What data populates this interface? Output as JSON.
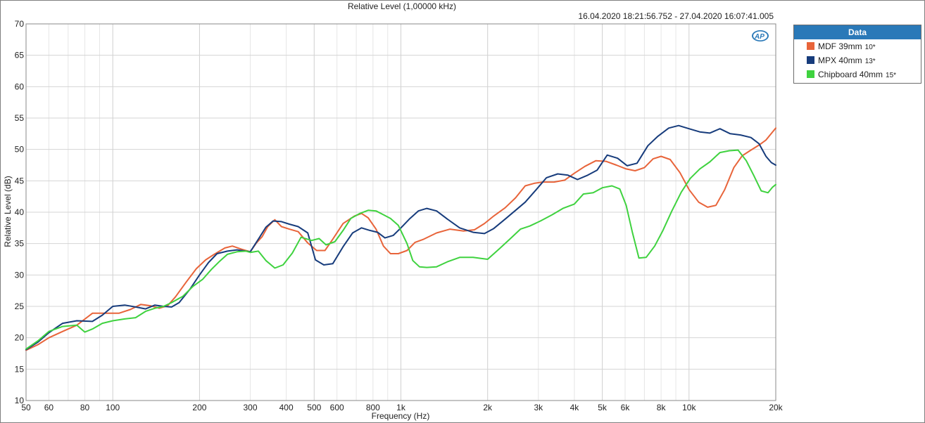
{
  "chart_data": {
    "type": "line",
    "title": "Relative Level (1,00000 kHz)",
    "date_range": "16.04.2020 18:21:56.752 - 27.04.2020 16:07:41.005",
    "xlabel": "Frequency (Hz)",
    "ylabel": "Relative Level (dB)",
    "xscale": "log",
    "xlim": [
      50,
      20000
    ],
    "ylim": [
      10,
      70
    ],
    "yticks": [
      10,
      15,
      20,
      25,
      30,
      35,
      40,
      45,
      50,
      55,
      60,
      65,
      70
    ],
    "xticks": [
      {
        "value": 50,
        "label": "50"
      },
      {
        "value": 60,
        "label": "60"
      },
      {
        "value": 80,
        "label": "80"
      },
      {
        "value": 100,
        "label": "100"
      },
      {
        "value": 200,
        "label": "200"
      },
      {
        "value": 300,
        "label": "300"
      },
      {
        "value": 400,
        "label": "400"
      },
      {
        "value": 500,
        "label": "500"
      },
      {
        "value": 600,
        "label": "600"
      },
      {
        "value": 800,
        "label": "800"
      },
      {
        "value": 1000,
        "label": "1k"
      },
      {
        "value": 2000,
        "label": "2k"
      },
      {
        "value": 3000,
        "label": "3k"
      },
      {
        "value": 4000,
        "label": "4k"
      },
      {
        "value": 5000,
        "label": "5k"
      },
      {
        "value": 6000,
        "label": "6k"
      },
      {
        "value": 8000,
        "label": "8k"
      },
      {
        "value": 10000,
        "label": "10k"
      },
      {
        "value": 20000,
        "label": "20k"
      }
    ],
    "grid": true,
    "legend_position": "right",
    "legend_title": "Data",
    "series": [
      {
        "name": "MDF 39mm",
        "suffix": "10*",
        "color": "#e8643a",
        "points": [
          [
            50,
            18
          ],
          [
            55,
            18.9
          ],
          [
            60,
            20
          ],
          [
            67,
            21
          ],
          [
            75,
            22
          ],
          [
            85,
            23.9
          ],
          [
            95,
            23.9
          ],
          [
            105,
            23.9
          ],
          [
            115,
            24.5
          ],
          [
            125,
            25.3
          ],
          [
            135,
            25.1
          ],
          [
            145,
            24.7
          ],
          [
            155,
            25.1
          ],
          [
            165,
            26.5
          ],
          [
            180,
            28.9
          ],
          [
            195,
            31
          ],
          [
            210,
            32.4
          ],
          [
            225,
            33.3
          ],
          [
            245,
            34.3
          ],
          [
            260,
            34.6
          ],
          [
            280,
            34.1
          ],
          [
            300,
            33.7
          ],
          [
            315,
            35.1
          ],
          [
            330,
            36.1
          ],
          [
            345,
            37.7
          ],
          [
            365,
            38.8
          ],
          [
            385,
            37.7
          ],
          [
            410,
            37.3
          ],
          [
            440,
            36.9
          ],
          [
            475,
            35.1
          ],
          [
            510,
            33.9
          ],
          [
            545,
            33.9
          ],
          [
            580,
            35.7
          ],
          [
            630,
            38.2
          ],
          [
            690,
            39.4
          ],
          [
            730,
            39.8
          ],
          [
            770,
            39.1
          ],
          [
            820,
            37.3
          ],
          [
            870,
            34.6
          ],
          [
            920,
            33.4
          ],
          [
            980,
            33.4
          ],
          [
            1050,
            33.9
          ],
          [
            1120,
            35.2
          ],
          [
            1200,
            35.7
          ],
          [
            1330,
            36.7
          ],
          [
            1480,
            37.3
          ],
          [
            1650,
            37
          ],
          [
            1800,
            37.2
          ],
          [
            1950,
            38.2
          ],
          [
            2100,
            39.4
          ],
          [
            2300,
            40.7
          ],
          [
            2500,
            42.3
          ],
          [
            2700,
            44.2
          ],
          [
            2900,
            44.6
          ],
          [
            3100,
            44.8
          ],
          [
            3400,
            44.8
          ],
          [
            3700,
            45.1
          ],
          [
            4000,
            46.2
          ],
          [
            4350,
            47.3
          ],
          [
            4750,
            48.2
          ],
          [
            5150,
            48.1
          ],
          [
            5600,
            47.5
          ],
          [
            6050,
            46.9
          ],
          [
            6500,
            46.6
          ],
          [
            7000,
            47.1
          ],
          [
            7500,
            48.5
          ],
          [
            8000,
            48.9
          ],
          [
            8600,
            48.4
          ],
          [
            9300,
            46.3
          ],
          [
            10000,
            43.6
          ],
          [
            10800,
            41.6
          ],
          [
            11600,
            40.8
          ],
          [
            12400,
            41.1
          ],
          [
            13300,
            43.6
          ],
          [
            14300,
            47.1
          ],
          [
            15300,
            49
          ],
          [
            16400,
            49.9
          ],
          [
            17500,
            50.7
          ],
          [
            18500,
            51.5
          ],
          [
            19500,
            52.8
          ],
          [
            20000,
            53.4
          ]
        ]
      },
      {
        "name": "MPX 40mm",
        "suffix": "13*",
        "color": "#173c7c",
        "points": [
          [
            50,
            18.1
          ],
          [
            55,
            19.3
          ],
          [
            60,
            20.8
          ],
          [
            67,
            22.3
          ],
          [
            75,
            22.7
          ],
          [
            85,
            22.6
          ],
          [
            92,
            23.6
          ],
          [
            100,
            25
          ],
          [
            110,
            25.2
          ],
          [
            120,
            24.9
          ],
          [
            130,
            24.6
          ],
          [
            140,
            25.2
          ],
          [
            150,
            25
          ],
          [
            160,
            24.9
          ],
          [
            170,
            25.6
          ],
          [
            185,
            27.7
          ],
          [
            200,
            30
          ],
          [
            215,
            32
          ],
          [
            230,
            33.4
          ],
          [
            250,
            33.8
          ],
          [
            270,
            34
          ],
          [
            290,
            33.8
          ],
          [
            300,
            33.7
          ],
          [
            320,
            35.7
          ],
          [
            340,
            37.6
          ],
          [
            360,
            38.6
          ],
          [
            385,
            38.5
          ],
          [
            410,
            38.1
          ],
          [
            440,
            37.7
          ],
          [
            475,
            36.7
          ],
          [
            505,
            32.4
          ],
          [
            540,
            31.6
          ],
          [
            580,
            31.8
          ],
          [
            630,
            34.5
          ],
          [
            680,
            36.7
          ],
          [
            730,
            37.5
          ],
          [
            780,
            37.1
          ],
          [
            830,
            36.8
          ],
          [
            880,
            35.9
          ],
          [
            940,
            36.3
          ],
          [
            1000,
            37.5
          ],
          [
            1070,
            38.9
          ],
          [
            1150,
            40.2
          ],
          [
            1230,
            40.6
          ],
          [
            1330,
            40.2
          ],
          [
            1450,
            38.9
          ],
          [
            1600,
            37.5
          ],
          [
            1780,
            36.8
          ],
          [
            1950,
            36.6
          ],
          [
            2100,
            37.4
          ],
          [
            2300,
            38.9
          ],
          [
            2500,
            40.3
          ],
          [
            2700,
            41.6
          ],
          [
            2950,
            43.6
          ],
          [
            3200,
            45.5
          ],
          [
            3500,
            46.1
          ],
          [
            3800,
            45.9
          ],
          [
            4100,
            45.2
          ],
          [
            4450,
            45.9
          ],
          [
            4800,
            46.7
          ],
          [
            5200,
            49.1
          ],
          [
            5650,
            48.6
          ],
          [
            6100,
            47.4
          ],
          [
            6600,
            47.8
          ],
          [
            7200,
            50.6
          ],
          [
            7800,
            52.1
          ],
          [
            8500,
            53.4
          ],
          [
            9200,
            53.8
          ],
          [
            10000,
            53.3
          ],
          [
            10900,
            52.8
          ],
          [
            11800,
            52.6
          ],
          [
            12800,
            53.3
          ],
          [
            13900,
            52.5
          ],
          [
            15100,
            52.3
          ],
          [
            16400,
            51.9
          ],
          [
            17500,
            50.9
          ],
          [
            18500,
            48.9
          ],
          [
            19300,
            47.9
          ],
          [
            20000,
            47.5
          ]
        ]
      },
      {
        "name": "Chipboard 40mm",
        "suffix": "15*",
        "color": "#3fd23f",
        "points": [
          [
            50,
            18.2
          ],
          [
            55,
            19.5
          ],
          [
            60,
            21
          ],
          [
            67,
            21.8
          ],
          [
            75,
            22
          ],
          [
            80,
            20.9
          ],
          [
            85,
            21.4
          ],
          [
            92,
            22.3
          ],
          [
            100,
            22.7
          ],
          [
            110,
            23
          ],
          [
            120,
            23.2
          ],
          [
            130,
            24.2
          ],
          [
            140,
            24.7
          ],
          [
            150,
            25
          ],
          [
            160,
            25.6
          ],
          [
            175,
            26.6
          ],
          [
            190,
            28.2
          ],
          [
            205,
            29.3
          ],
          [
            220,
            30.9
          ],
          [
            235,
            32.2
          ],
          [
            250,
            33.3
          ],
          [
            270,
            33.7
          ],
          [
            290,
            33.8
          ],
          [
            300,
            33.6
          ],
          [
            320,
            33.8
          ],
          [
            340,
            32.3
          ],
          [
            365,
            31.1
          ],
          [
            390,
            31.6
          ],
          [
            420,
            33.5
          ],
          [
            450,
            36
          ],
          [
            490,
            35.5
          ],
          [
            520,
            35.8
          ],
          [
            550,
            34.8
          ],
          [
            590,
            35.3
          ],
          [
            630,
            37.1
          ],
          [
            670,
            39
          ],
          [
            720,
            39.8
          ],
          [
            770,
            40.3
          ],
          [
            820,
            40.2
          ],
          [
            870,
            39.6
          ],
          [
            920,
            39
          ],
          [
            980,
            37.9
          ],
          [
            1050,
            35
          ],
          [
            1100,
            32.3
          ],
          [
            1160,
            31.3
          ],
          [
            1230,
            31.2
          ],
          [
            1330,
            31.3
          ],
          [
            1450,
            32.1
          ],
          [
            1600,
            32.8
          ],
          [
            1780,
            32.8
          ],
          [
            2000,
            32.5
          ],
          [
            2200,
            34.2
          ],
          [
            2400,
            35.8
          ],
          [
            2600,
            37.3
          ],
          [
            2800,
            37.8
          ],
          [
            3050,
            38.6
          ],
          [
            3350,
            39.6
          ],
          [
            3650,
            40.6
          ],
          [
            4000,
            41.3
          ],
          [
            4300,
            42.9
          ],
          [
            4650,
            43.1
          ],
          [
            5000,
            43.9
          ],
          [
            5400,
            44.2
          ],
          [
            5750,
            43.7
          ],
          [
            6050,
            41.1
          ],
          [
            6350,
            36.9
          ],
          [
            6700,
            32.7
          ],
          [
            7100,
            32.8
          ],
          [
            7600,
            34.6
          ],
          [
            8100,
            37
          ],
          [
            8700,
            40.1
          ],
          [
            9400,
            43.2
          ],
          [
            10100,
            45.4
          ],
          [
            10900,
            46.9
          ],
          [
            11800,
            48
          ],
          [
            12800,
            49.5
          ],
          [
            13800,
            49.8
          ],
          [
            14800,
            49.9
          ],
          [
            15800,
            48.2
          ],
          [
            16800,
            45.8
          ],
          [
            17800,
            43.4
          ],
          [
            18800,
            43.1
          ],
          [
            19500,
            44
          ],
          [
            20000,
            44.4
          ]
        ]
      }
    ]
  }
}
